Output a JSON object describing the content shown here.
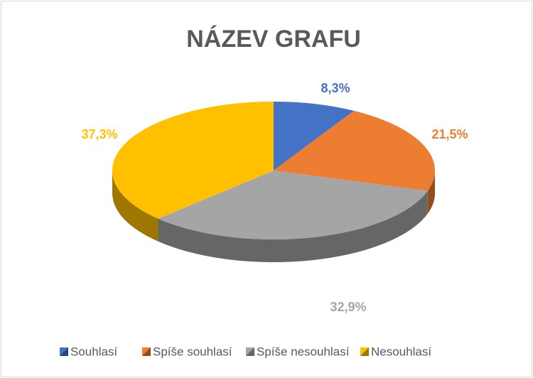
{
  "chart_data": {
    "type": "pie",
    "title": "NÁZEV GRAFU",
    "categories": [
      "Souhlasí",
      "Spíše souhlasí",
      "Spíše nesouhlasí",
      "Nesouhlasí"
    ],
    "values": [
      8.3,
      21.5,
      32.9,
      37.3
    ],
    "value_labels": [
      "8,3%",
      "21,5%",
      "32,9%",
      "37,3%"
    ],
    "colors": [
      "#4472c4",
      "#ed7d31",
      "#a5a5a5",
      "#ffc000"
    ],
    "legend": "bottom"
  }
}
